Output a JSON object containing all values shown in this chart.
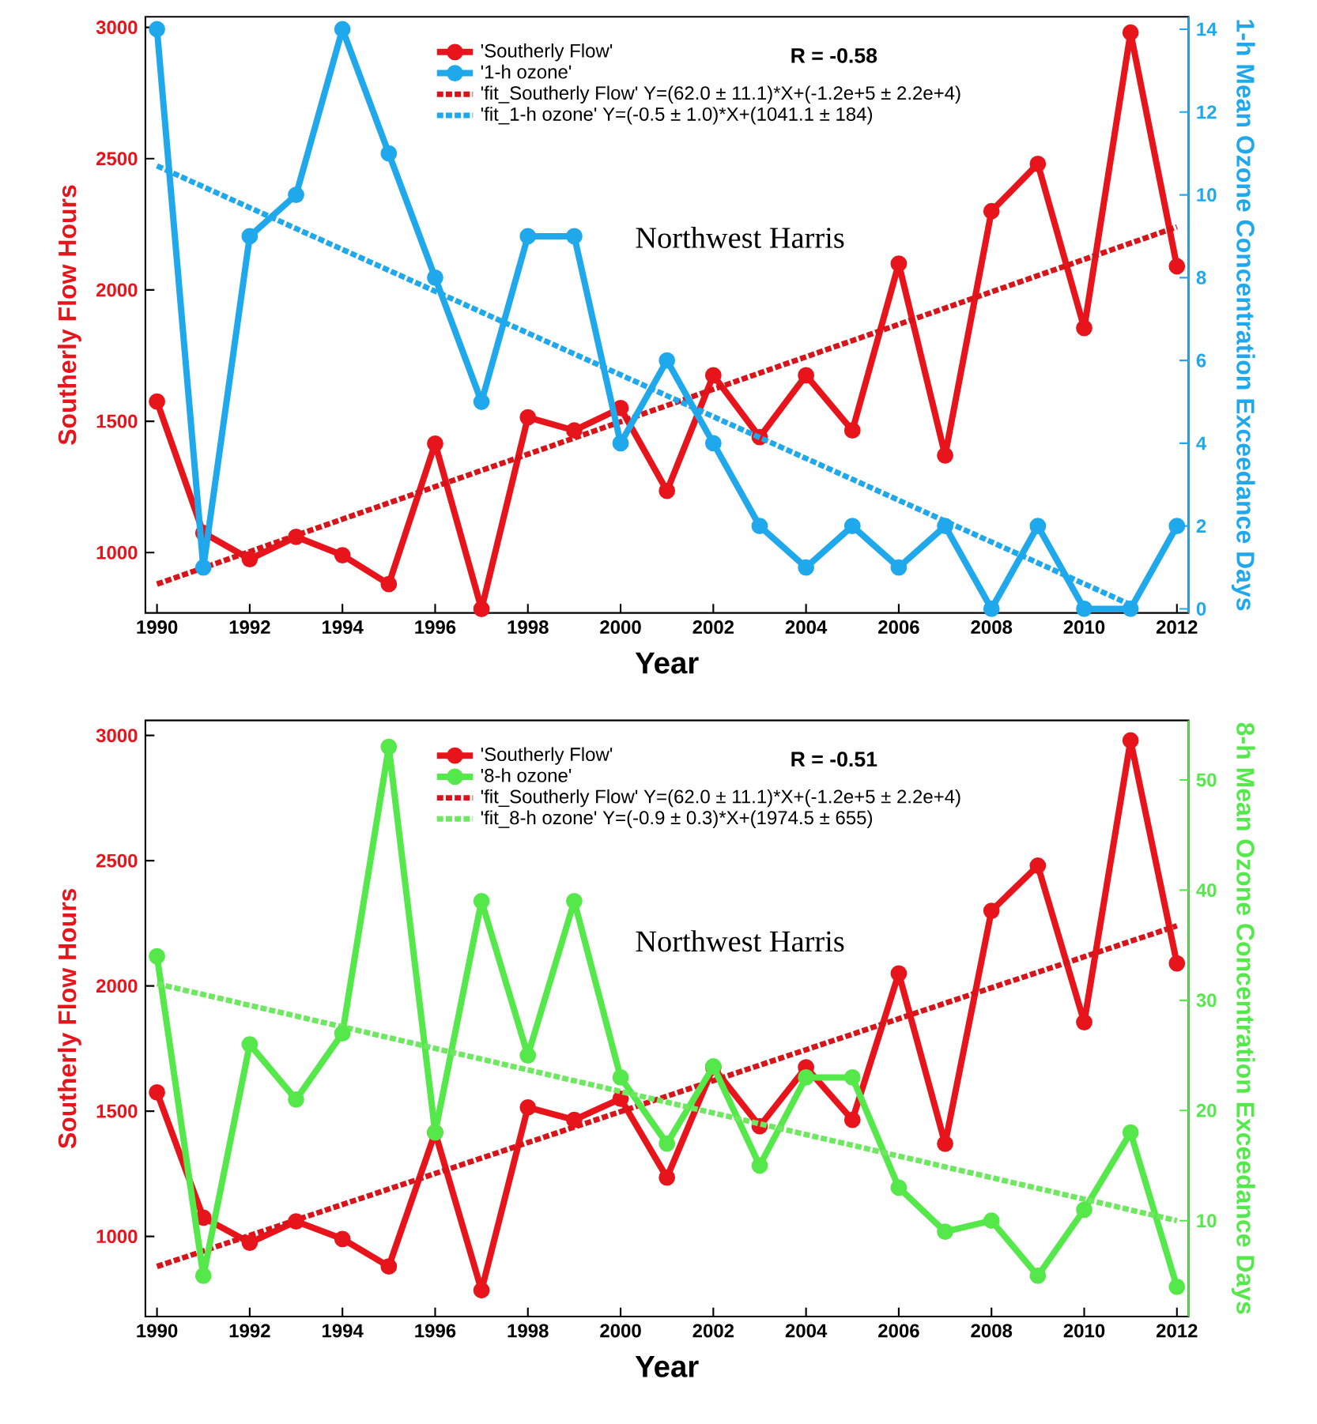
{
  "chart_data": [
    {
      "type": "line",
      "xlabel": "Year",
      "ylabel": "Southerly Flow Hours",
      "y2label": "1-h Mean Ozone Concentration Exceedance Days",
      "x": [
        1990,
        1991,
        1992,
        1993,
        1994,
        1995,
        1996,
        1997,
        1998,
        1999,
        2000,
        2001,
        2002,
        2003,
        2004,
        2005,
        2006,
        2007,
        2008,
        2009,
        2010,
        2011,
        2012
      ],
      "xlim": [
        1989.75,
        2012.25
      ],
      "xticks": [
        1990,
        1992,
        1994,
        1996,
        1998,
        2000,
        2002,
        2004,
        2006,
        2008,
        2010,
        2012
      ],
      "ylim": [
        770,
        3040
      ],
      "yticks": [
        1000,
        1500,
        2000,
        2500,
        3000
      ],
      "y2lim": [
        -0.1,
        14.3
      ],
      "y2ticks": [
        0,
        2,
        4,
        6,
        8,
        10,
        12,
        14
      ],
      "legend": "top",
      "annotations": [
        "R  =  -0.58",
        "Northwest Harris"
      ],
      "series": [
        {
          "name": "'Southerly Flow'",
          "color": "#e8141b",
          "marker": "circle",
          "line_style": "solid",
          "values": [
            1575,
            1075,
            975,
            1060,
            990,
            880,
            1415,
            785,
            1515,
            1465,
            1550,
            1235,
            1675,
            1440,
            1675,
            1465,
            2100,
            1370,
            2300,
            2480,
            1855,
            2980,
            2090
          ]
        },
        {
          "name": "'1-h ozone'",
          "color": "#1fa8ec",
          "marker": "circle",
          "line_style": "solid",
          "axis": "y2",
          "values": [
            14,
            1,
            9,
            10,
            14,
            11,
            8,
            5,
            9,
            9,
            4,
            6,
            4,
            2,
            1,
            2,
            1,
            2,
            0,
            2,
            0,
            0,
            2
          ]
        },
        {
          "name": "'fit_Southerly Flow' Y=(62.0 ± 11.1)*X+(-1.2e+5 ± 2.2e+4)",
          "color": "#d8141b",
          "marker": "none",
          "line_style": "dashed",
          "x": [
            1990,
            2012
          ],
          "values": [
            880,
            2240
          ]
        },
        {
          "name": "'fit_1-h ozone' Y=(-0.5 ± 1.0)*X+(1041.1 ± 184)",
          "color": "#1fa8ec",
          "marker": "none",
          "line_style": "dashed",
          "axis": "y2",
          "x": [
            1990,
            2011
          ],
          "values": [
            10.7,
            0.1
          ]
        }
      ]
    },
    {
      "type": "line",
      "xlabel": "Year",
      "ylabel": "Southerly Flow Hours",
      "y2label": "8-h Mean Ozone Concentration Exceedance Days",
      "x": [
        1990,
        1991,
        1992,
        1993,
        1994,
        1995,
        1996,
        1997,
        1998,
        1999,
        2000,
        2001,
        2002,
        2003,
        2004,
        2005,
        2006,
        2007,
        2008,
        2009,
        2010,
        2011,
        2012
      ],
      "xlim": [
        1989.75,
        2012.25
      ],
      "xticks": [
        1990,
        1992,
        1994,
        1996,
        1998,
        2000,
        2002,
        2004,
        2006,
        2008,
        2010,
        2012
      ],
      "ylim": [
        680,
        3060
      ],
      "yticks": [
        1000,
        1500,
        2000,
        2500,
        3000
      ],
      "y2lim": [
        1.3,
        55.4
      ],
      "y2ticks": [
        10,
        20,
        30,
        40,
        50
      ],
      "legend": "top",
      "annotations": [
        "R  =  -0.51",
        "Northwest Harris"
      ],
      "series": [
        {
          "name": "'Southerly Flow'",
          "color": "#e8141b",
          "marker": "circle",
          "line_style": "solid",
          "values": [
            1575,
            1075,
            975,
            1060,
            990,
            880,
            1415,
            785,
            1515,
            1465,
            1550,
            1235,
            1675,
            1440,
            1675,
            1465,
            2050,
            1370,
            2300,
            2480,
            1855,
            2980,
            2090
          ]
        },
        {
          "name": "'8-h ozone'",
          "color": "#55e84a",
          "marker": "circle",
          "line_style": "solid",
          "axis": "y2",
          "values": [
            34,
            5,
            26,
            21,
            27,
            53,
            18,
            39,
            25,
            39,
            23,
            17,
            24,
            15,
            23,
            23,
            13,
            9,
            10,
            5,
            11,
            18,
            4
          ]
        },
        {
          "name": "'fit_Southerly Flow' Y=(62.0 ± 11.1)*X+(-1.2e+5 ± 2.2e+4)",
          "color": "#d8141b",
          "marker": "none",
          "line_style": "dashed",
          "x": [
            1990,
            2012
          ],
          "values": [
            880,
            2240
          ]
        },
        {
          "name": "'fit_8-h ozone' Y=(-0.9 ± 0.3)*X+(1974.5 ± 655)",
          "color": "#6ee860",
          "marker": "none",
          "line_style": "dashed",
          "axis": "y2",
          "x": [
            1990,
            2012
          ],
          "values": [
            31.5,
            10
          ]
        }
      ]
    }
  ]
}
